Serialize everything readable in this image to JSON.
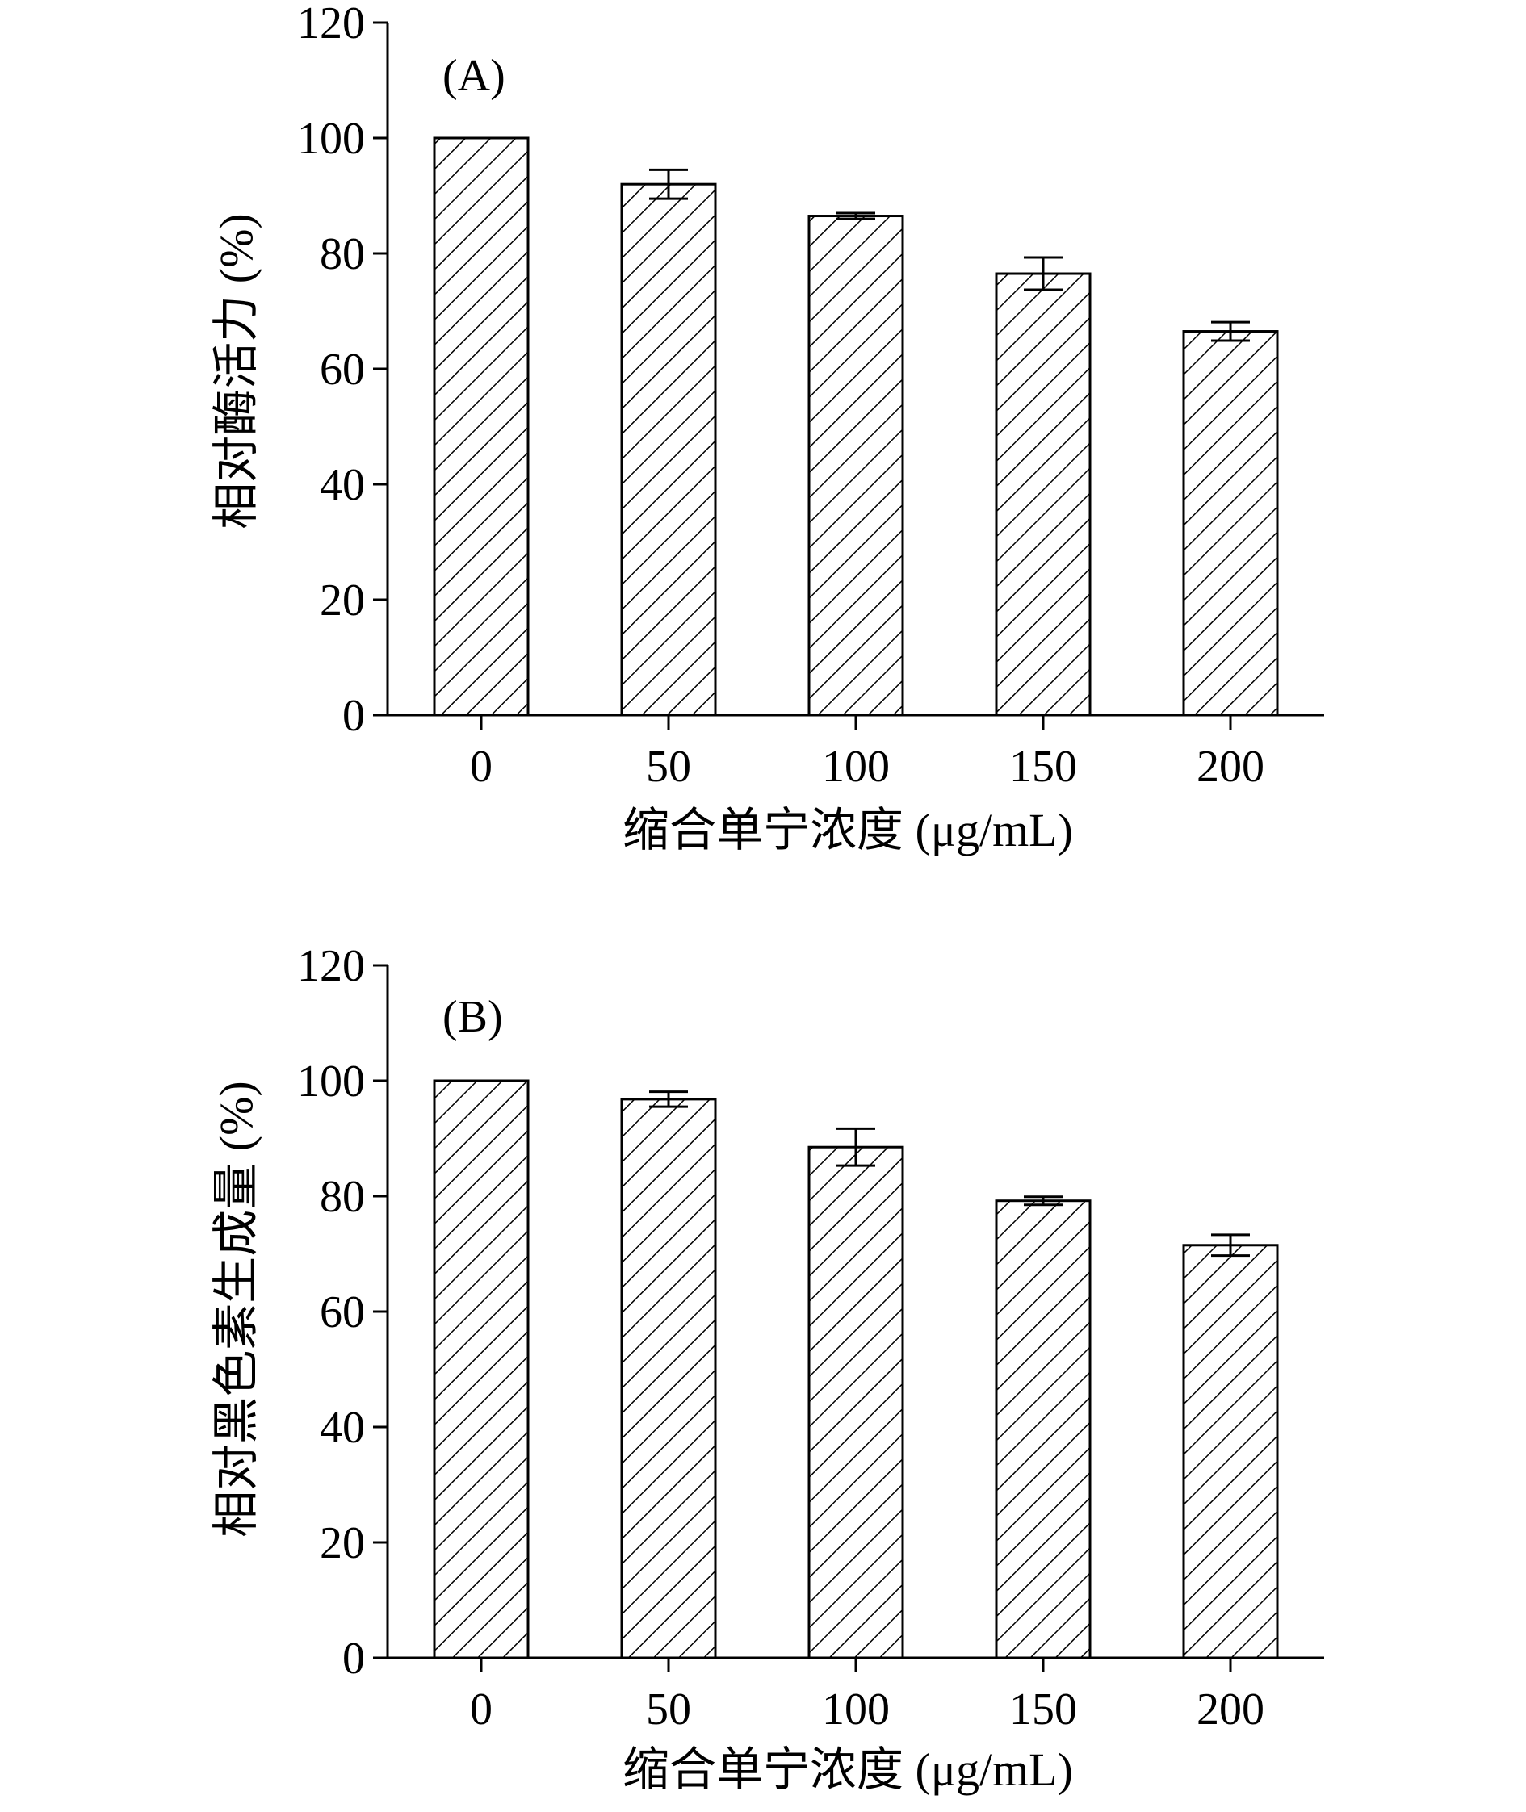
{
  "chart_data": [
    {
      "type": "bar",
      "panel_label": "(A)",
      "categories": [
        "0",
        "50",
        "100",
        "150",
        "200"
      ],
      "values": [
        100,
        92,
        86.5,
        76.5,
        66.5
      ],
      "errors": [
        0,
        2.5,
        0.5,
        2.8,
        1.6
      ],
      "xlabel": "缩合单宁浓度 (μg/mL)",
      "ylabel": "相对酶活力 (%)",
      "ylim": [
        0,
        120
      ],
      "yticks": [
        "0",
        "20",
        "40",
        "60",
        "80",
        "100",
        "120"
      ],
      "fill": "diagonal-hatch",
      "grid": false
    },
    {
      "type": "bar",
      "panel_label": "(B)",
      "categories": [
        "0",
        "50",
        "100",
        "150",
        "200"
      ],
      "values": [
        100,
        96.8,
        88.5,
        79.2,
        71.5
      ],
      "errors": [
        0,
        1.3,
        3.2,
        0.7,
        1.8
      ],
      "xlabel": "缩合单宁浓度 (μg/mL)",
      "ylabel": "相对黑色素生成量 (%)",
      "ylim": [
        0,
        120
      ],
      "yticks": [
        "0",
        "20",
        "40",
        "60",
        "80",
        "100",
        "120"
      ],
      "fill": "diagonal-hatch",
      "grid": false
    }
  ]
}
